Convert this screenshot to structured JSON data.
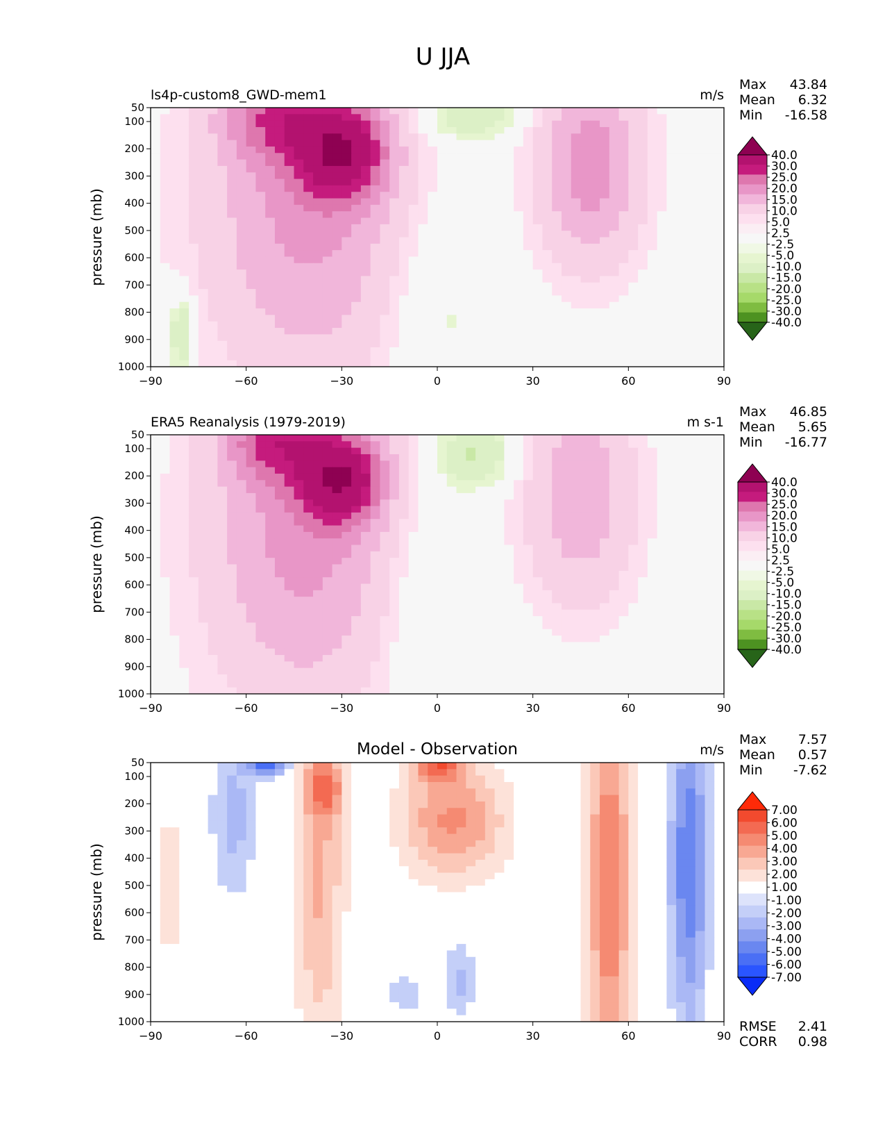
{
  "title": "U JJA",
  "ylabel": "pressure (mb)",
  "x_ticks": [
    "−90",
    "−60",
    "−30",
    "0",
    "30",
    "60",
    "90"
  ],
  "y_ticks": [
    "50",
    "100",
    "200",
    "300",
    "400",
    "500",
    "600",
    "700",
    "800",
    "900",
    "1000"
  ],
  "colors": {
    "full_levels": [
      "#276419",
      "#4d9221",
      "#7fbc41",
      "#a6d96a",
      "#b8e186",
      "#c9e8a6",
      "#dcf0c6",
      "#e6f5d0",
      "#f0f8e5",
      "#f7f7f7",
      "#fbeef4",
      "#fde0ef",
      "#f8d2e6",
      "#f1b6da",
      "#e896c7",
      "#de77ae",
      "#c51b7d",
      "#b3126f",
      "#8e0152"
    ],
    "diff_levels": [
      "#0a2cf7",
      "#2a55ff",
      "#4a6ff5",
      "#6a87f0",
      "#8ca0f0",
      "#aab8f5",
      "#c4cff8",
      "#dde3fb",
      "#ffffff",
      "#fde2d9",
      "#fbc8b8",
      "#f8a893",
      "#f58a72",
      "#f36a52",
      "#f24a2e",
      "#ff2a08"
    ]
  },
  "chart_data": [
    {
      "type": "heatmap",
      "panel": "model",
      "left_label": "ls4p-custom8_GWD-mem1",
      "units": "m/s",
      "stats": [
        {
          "label": "Max",
          "value": "43.84"
        },
        {
          "label": "Mean",
          "value": "6.32"
        },
        {
          "label": "Min",
          "value": "-16.58"
        }
      ],
      "colorbar_labels": [
        "40.0",
        "30.0",
        "25.0",
        "20.0",
        "15.0",
        "10.0",
        "5.0",
        "2.5",
        "-2.5",
        "-5.0",
        "-10.0",
        "-15.0",
        "-20.0",
        "-25.0",
        "-30.0",
        "-40.0"
      ],
      "xlim": [
        -90,
        90
      ],
      "ylim": [
        1000,
        50
      ],
      "blobs": [
        {
          "lat": -40,
          "p": 380,
          "slat": 34,
          "sp": 700,
          "amp": 17
        },
        {
          "lat": -30,
          "p": 210,
          "slat": 14,
          "sp": 170,
          "amp": 27
        },
        {
          "lat": -52,
          "p": 80,
          "slat": 16,
          "sp": 160,
          "amp": 14
        },
        {
          "lat": 48,
          "p": 260,
          "slat": 17,
          "sp": 380,
          "amp": 18
        },
        {
          "lat": -80,
          "p": 880,
          "slat": 4,
          "sp": 140,
          "amp": -12
        },
        {
          "lat": 10,
          "p": 80,
          "slat": 16,
          "sp": 90,
          "amp": -10
        },
        {
          "lat": 0,
          "p": 750,
          "slat": 18,
          "sp": 450,
          "amp": -5
        }
      ]
    },
    {
      "type": "heatmap",
      "panel": "observation",
      "left_label": "ERA5 Reanalysis (1979-2019)",
      "units": "m s-1",
      "stats": [
        {
          "label": "Max",
          "value": "46.85"
        },
        {
          "label": "Mean",
          "value": "5.65"
        },
        {
          "label": "Min",
          "value": "-16.77"
        }
      ],
      "colorbar_labels": [
        "40.0",
        "30.0",
        "25.0",
        "20.0",
        "15.0",
        "10.0",
        "5.0",
        "2.5",
        "-2.5",
        "-5.0",
        "-10.0",
        "-15.0",
        "-20.0",
        "-25.0",
        "-30.0",
        "-40.0"
      ],
      "xlim": [
        -90,
        90
      ],
      "ylim": [
        1000,
        50
      ],
      "blobs": [
        {
          "lat": -42,
          "p": 400,
          "slat": 32,
          "sp": 680,
          "amp": 17
        },
        {
          "lat": -30,
          "p": 210,
          "slat": 13,
          "sp": 160,
          "amp": 28
        },
        {
          "lat": -52,
          "p": 70,
          "slat": 15,
          "sp": 150,
          "amp": 16
        },
        {
          "lat": 45,
          "p": 270,
          "slat": 18,
          "sp": 420,
          "amp": 14
        },
        {
          "lat": 12,
          "p": 120,
          "slat": 12,
          "sp": 120,
          "amp": -11
        },
        {
          "lat": -3,
          "p": 700,
          "slat": 15,
          "sp": 500,
          "amp": -5
        }
      ]
    },
    {
      "type": "heatmap",
      "panel": "difference",
      "title": "Model - Observation",
      "units": "m/s",
      "stats": [
        {
          "label": "Max",
          "value": "7.57"
        },
        {
          "label": "Mean",
          "value": "0.57"
        },
        {
          "label": "Min",
          "value": "-7.62"
        }
      ],
      "bottom_stats": [
        {
          "label": "RMSE",
          "value": "2.41"
        },
        {
          "label": "CORR",
          "value": "0.98"
        }
      ],
      "colorbar_labels": [
        "7.00",
        "6.00",
        "5.00",
        "4.00",
        "3.00",
        "2.00",
        "1.00",
        "-1.00",
        "-2.00",
        "-3.00",
        "-4.00",
        "-5.00",
        "-6.00",
        "-7.00"
      ],
      "xlim": [
        -90,
        90
      ],
      "ylim": [
        1000,
        50
      ],
      "blobs": [
        {
          "lat": -37,
          "p": 450,
          "slat": 8,
          "sp": 700,
          "amp": 3.2
        },
        {
          "lat": -35,
          "p": 140,
          "slat": 6,
          "sp": 110,
          "amp": 3.5
        },
        {
          "lat": 5,
          "p": 260,
          "slat": 17,
          "sp": 220,
          "amp": 4.2
        },
        {
          "lat": 0,
          "p": 60,
          "slat": 8,
          "sp": 60,
          "amp": 4.5
        },
        {
          "lat": 54,
          "p": 500,
          "slat": 7,
          "sp": 800,
          "amp": 5.0
        },
        {
          "lat": 79,
          "p": 420,
          "slat": 6,
          "sp": 600,
          "amp": -5.0
        },
        {
          "lat": -64,
          "p": 250,
          "slat": 7,
          "sp": 300,
          "amp": -2.5
        },
        {
          "lat": -53,
          "p": 50,
          "slat": 6,
          "sp": 45,
          "amp": -6.0
        },
        {
          "lat": -84,
          "p": 500,
          "slat": 3,
          "sp": 350,
          "amp": 1.8
        },
        {
          "lat": 7,
          "p": 850,
          "slat": 5,
          "sp": 150,
          "amp": -2.2
        },
        {
          "lat": -10,
          "p": 900,
          "slat": 8,
          "sp": 120,
          "amp": -1.3
        }
      ]
    }
  ]
}
